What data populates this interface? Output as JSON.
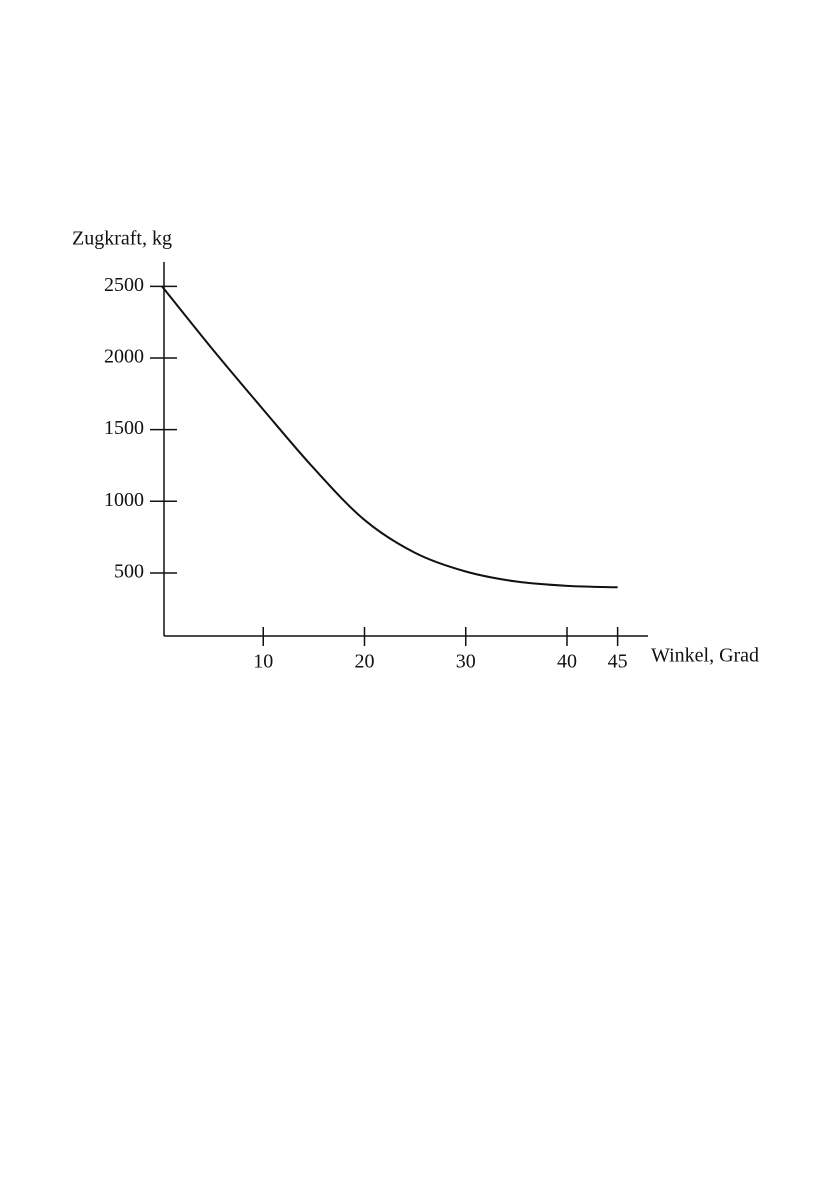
{
  "chart_data": {
    "type": "line",
    "x_label": "Winkel, Grad",
    "y_label": "Zugkraft, kg",
    "x": [
      0,
      5,
      10,
      15,
      20,
      25,
      30,
      35,
      40,
      45
    ],
    "series": [
      {
        "color": "#111111",
        "values": [
          2500,
          2060,
          1640,
          1230,
          870,
          640,
          510,
          440,
          410,
          400
        ]
      }
    ],
    "xlim": [
      0,
      48
    ],
    "xticks": [
      10,
      20,
      30,
      40,
      45
    ],
    "ylim": [
      60,
      2670
    ],
    "yticks": [
      500,
      1000,
      1500,
      2000,
      2500
    ],
    "grid": false
  }
}
